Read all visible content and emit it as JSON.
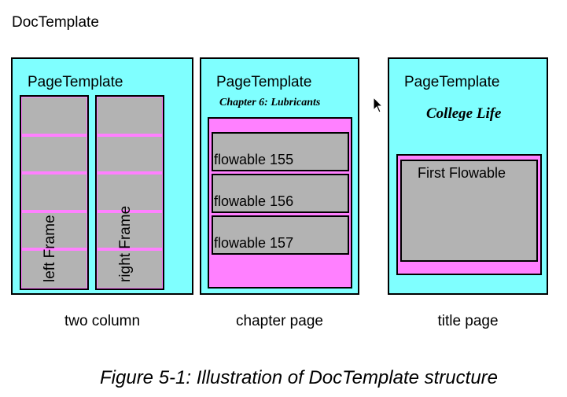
{
  "doc_template_label": "DocTemplate",
  "templates": [
    {
      "label": "PageTemplate",
      "frames": [
        "left Frame",
        "right Frame"
      ],
      "caption": "two column"
    },
    {
      "label": "PageTemplate",
      "heading": "Chapter 6: Lubricants",
      "flowables": [
        "flowable 155",
        "flowable 156",
        "flowable 157"
      ],
      "caption": "chapter page"
    },
    {
      "label": "PageTemplate",
      "heading": "College Life",
      "flowables": [
        "First Flowable"
      ],
      "caption": "title page"
    }
  ],
  "figure_caption": "Figure 5-1: Illustration of DocTemplate structure",
  "colors": {
    "page_template": "#7fffff",
    "frame": "#ff80ff",
    "flowable": "#b3b3b3"
  }
}
